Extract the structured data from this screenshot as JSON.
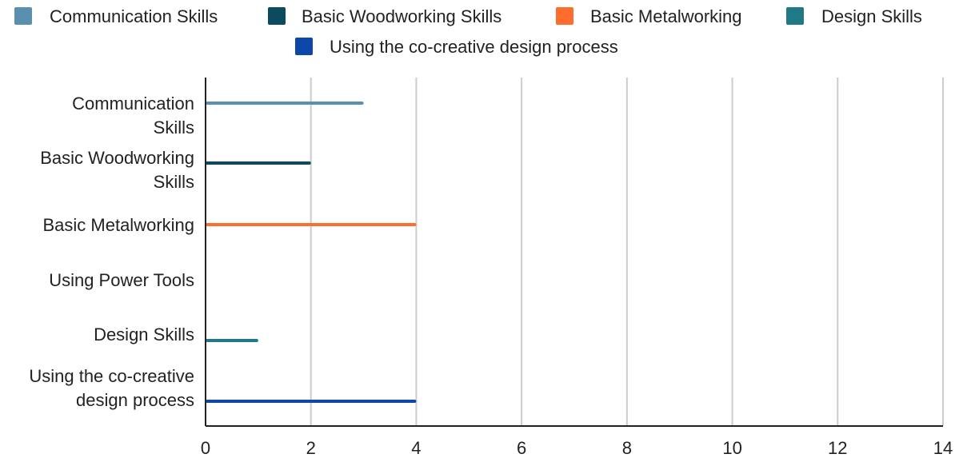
{
  "chart_data": {
    "type": "bar",
    "orientation": "horizontal",
    "categories": [
      [
        "Communication",
        "Skills"
      ],
      [
        "Basic Woodworking",
        "Skills"
      ],
      [
        "Basic Metalworking"
      ],
      [
        "Using Power Tools"
      ],
      [
        "Design Skills"
      ],
      [
        "Using the co-creative",
        "design process"
      ]
    ],
    "series": [
      {
        "name": "Communication Skills",
        "color": "#5b8fb0",
        "values": [
          3,
          null,
          null,
          null,
          null,
          null
        ]
      },
      {
        "name": "Basic Woodworking Skills",
        "color": "#0c4a60",
        "values": [
          null,
          2,
          null,
          null,
          null,
          null
        ]
      },
      {
        "name": "Basic Metalworking",
        "color": "#ff6d2e",
        "values": [
          null,
          null,
          4,
          null,
          null,
          null
        ]
      },
      {
        "name": "Design Skills",
        "color": "#1f7a85",
        "values": [
          null,
          null,
          null,
          null,
          1,
          null
        ]
      },
      {
        "name": "Using the co-creative design process",
        "color": "#0d47a9",
        "values": [
          null,
          null,
          null,
          null,
          null,
          4
        ]
      }
    ],
    "xlim": [
      0,
      14
    ],
    "xticks": [
      "0",
      "2",
      "4",
      "6",
      "8",
      "10",
      "12",
      "14"
    ],
    "grid": true,
    "legend_position": "top"
  }
}
